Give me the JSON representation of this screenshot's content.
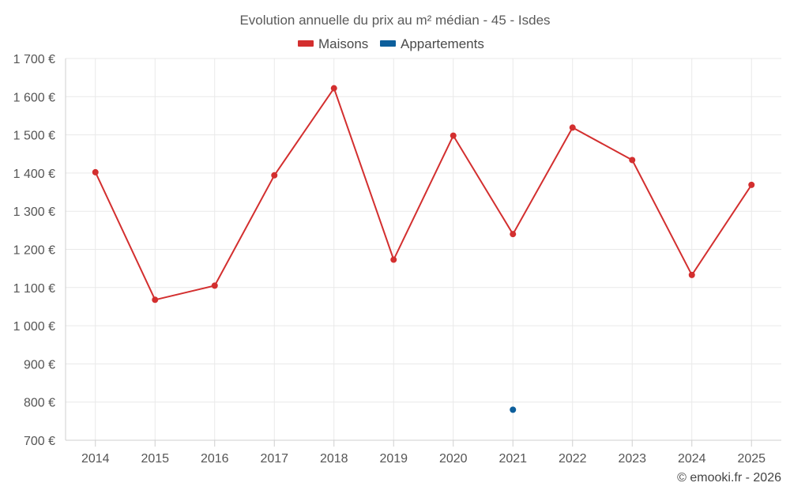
{
  "chart_data": {
    "type": "line",
    "title": "Evolution annuelle du prix au m² médian - 45 - Isdes",
    "categories": [
      "2014",
      "2015",
      "2016",
      "2017",
      "2018",
      "2019",
      "2020",
      "2021",
      "2022",
      "2023",
      "2024",
      "2025"
    ],
    "ylim": [
      700,
      1700
    ],
    "yticks": [
      700,
      800,
      900,
      1000,
      1100,
      1200,
      1300,
      1400,
      1500,
      1600,
      1700
    ],
    "ytick_labels": [
      "700 €",
      "800 €",
      "900 €",
      "1 000 €",
      "1 100 €",
      "1 200 €",
      "1 300 €",
      "1 400 €",
      "1 500 €",
      "1 600 €",
      "1 700 €"
    ],
    "grid": true,
    "legend_position": "top-center",
    "series": [
      {
        "name": "Maisons",
        "color": "#d32f2f",
        "values": [
          1402,
          1068,
          1105,
          1394,
          1622,
          1173,
          1498,
          1240,
          1519,
          1434,
          1133,
          1369
        ]
      },
      {
        "name": "Appartements",
        "color": "#0d5f9c",
        "values": [
          null,
          null,
          null,
          null,
          null,
          null,
          null,
          780,
          null,
          null,
          null,
          null
        ]
      }
    ]
  },
  "credit": "© emooki.fr - 2026"
}
